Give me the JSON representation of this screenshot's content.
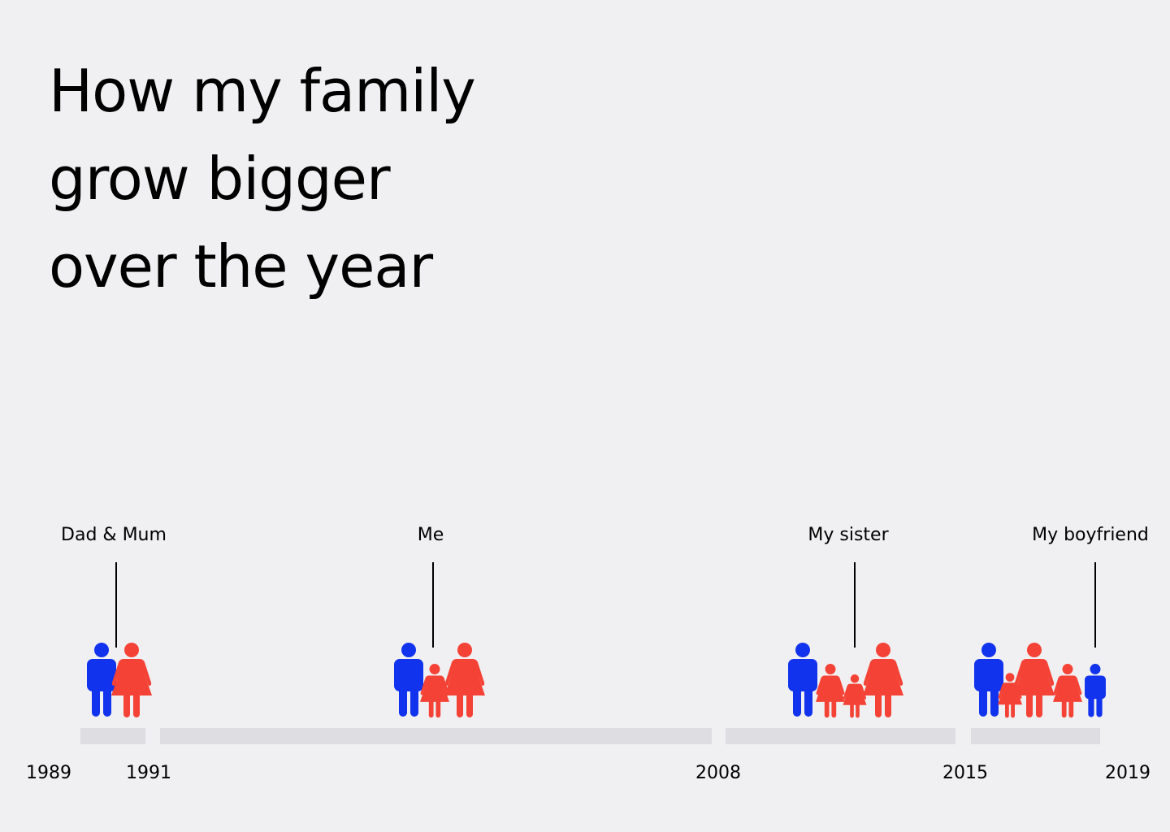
{
  "title": {
    "lines": [
      "How my family",
      "grow bigger",
      "over the year"
    ]
  },
  "colors": {
    "background": "#f0eff1",
    "male": "#1133ee",
    "female": "#f44336",
    "segment": "#dddde2",
    "text": "#000000"
  },
  "years": [
    "1989",
    "1991",
    "2008",
    "2015",
    "2019"
  ],
  "events": [
    {
      "label": "Dad & Mum",
      "figures": [
        "man-icon",
        "woman-icon"
      ]
    },
    {
      "label": "Me",
      "figures": [
        "man-icon",
        "girl-icon",
        "woman-icon"
      ]
    },
    {
      "label": "My sister",
      "figures": [
        "man-icon",
        "girl-icon",
        "girl-icon",
        "woman-icon"
      ]
    },
    {
      "label": "My boyfriend",
      "figures": [
        "man-icon",
        "girl-icon",
        "woman-icon",
        "girl-icon",
        "boy-icon"
      ]
    }
  ]
}
